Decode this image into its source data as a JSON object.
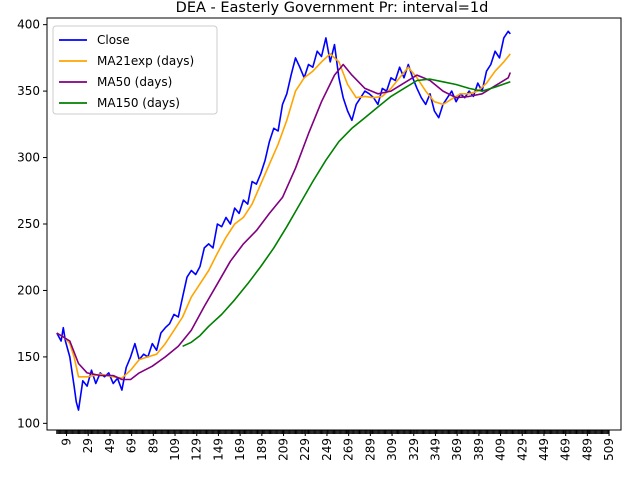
{
  "chart_data": {
    "type": "line",
    "title": "DEA - Easterly Government Pr: interval=1d",
    "xlabel": "",
    "ylabel": "",
    "xlim": [
      -9,
      520
    ],
    "ylim": [
      95,
      405
    ],
    "x_ticks": [
      9,
      29,
      49,
      69,
      89,
      109,
      129,
      149,
      169,
      189,
      209,
      229,
      249,
      269,
      289,
      309,
      329,
      349,
      369,
      389,
      409,
      429,
      449,
      469,
      489,
      509
    ],
    "y_ticks": [
      100,
      150,
      200,
      250,
      300,
      350,
      400
    ],
    "grid": false,
    "legend_position": "top-left",
    "series": [
      {
        "name": "Close",
        "color": "#0000ff",
        "points": [
          [
            0,
            168
          ],
          [
            4,
            162
          ],
          [
            6,
            172
          ],
          [
            8,
            162
          ],
          [
            12,
            150
          ],
          [
            16,
            128
          ],
          [
            18,
            116
          ],
          [
            20,
            110
          ],
          [
            24,
            132
          ],
          [
            28,
            128
          ],
          [
            32,
            140
          ],
          [
            36,
            130
          ],
          [
            40,
            138
          ],
          [
            44,
            135
          ],
          [
            48,
            138
          ],
          [
            52,
            130
          ],
          [
            56,
            134
          ],
          [
            60,
            125
          ],
          [
            64,
            142
          ],
          [
            68,
            150
          ],
          [
            72,
            160
          ],
          [
            76,
            148
          ],
          [
            80,
            152
          ],
          [
            84,
            150
          ],
          [
            88,
            160
          ],
          [
            92,
            155
          ],
          [
            96,
            168
          ],
          [
            100,
            172
          ],
          [
            104,
            175
          ],
          [
            108,
            182
          ],
          [
            112,
            180
          ],
          [
            116,
            195
          ],
          [
            120,
            210
          ],
          [
            124,
            215
          ],
          [
            128,
            212
          ],
          [
            132,
            218
          ],
          [
            136,
            232
          ],
          [
            140,
            235
          ],
          [
            144,
            232
          ],
          [
            148,
            250
          ],
          [
            152,
            248
          ],
          [
            156,
            255
          ],
          [
            160,
            250
          ],
          [
            164,
            262
          ],
          [
            168,
            258
          ],
          [
            172,
            268
          ],
          [
            176,
            265
          ],
          [
            180,
            282
          ],
          [
            184,
            280
          ],
          [
            188,
            288
          ],
          [
            192,
            298
          ],
          [
            196,
            312
          ],
          [
            200,
            322
          ],
          [
            204,
            320
          ],
          [
            208,
            340
          ],
          [
            212,
            348
          ],
          [
            216,
            362
          ],
          [
            220,
            375
          ],
          [
            224,
            368
          ],
          [
            228,
            360
          ],
          [
            232,
            370
          ],
          [
            236,
            368
          ],
          [
            240,
            380
          ],
          [
            244,
            376
          ],
          [
            248,
            390
          ],
          [
            252,
            372
          ],
          [
            256,
            385
          ],
          [
            260,
            360
          ],
          [
            264,
            345
          ],
          [
            268,
            335
          ],
          [
            272,
            328
          ],
          [
            276,
            340
          ],
          [
            280,
            345
          ],
          [
            284,
            350
          ],
          [
            288,
            348
          ],
          [
            292,
            345
          ],
          [
            296,
            340
          ],
          [
            300,
            352
          ],
          [
            304,
            350
          ],
          [
            308,
            360
          ],
          [
            312,
            358
          ],
          [
            316,
            368
          ],
          [
            320,
            360
          ],
          [
            324,
            370
          ],
          [
            328,
            360
          ],
          [
            332,
            352
          ],
          [
            336,
            345
          ],
          [
            340,
            340
          ],
          [
            344,
            348
          ],
          [
            348,
            335
          ],
          [
            352,
            330
          ],
          [
            356,
            340
          ],
          [
            360,
            345
          ],
          [
            364,
            350
          ],
          [
            368,
            342
          ],
          [
            372,
            348
          ],
          [
            376,
            345
          ],
          [
            380,
            350
          ],
          [
            384,
            346
          ],
          [
            388,
            356
          ],
          [
            392,
            350
          ],
          [
            396,
            365
          ],
          [
            400,
            370
          ],
          [
            404,
            380
          ],
          [
            408,
            375
          ],
          [
            412,
            390
          ],
          [
            416,
            395
          ],
          [
            418,
            393
          ]
        ]
      },
      {
        "name": "MA21exp (days)",
        "color": "#ffa500",
        "points": [
          [
            0,
            168
          ],
          [
            8,
            164
          ],
          [
            12,
            160
          ],
          [
            16,
            150
          ],
          [
            20,
            135
          ],
          [
            28,
            135
          ],
          [
            40,
            137
          ],
          [
            52,
            135
          ],
          [
            60,
            134
          ],
          [
            68,
            140
          ],
          [
            76,
            148
          ],
          [
            84,
            150
          ],
          [
            92,
            152
          ],
          [
            100,
            160
          ],
          [
            108,
            170
          ],
          [
            116,
            180
          ],
          [
            124,
            195
          ],
          [
            132,
            205
          ],
          [
            140,
            215
          ],
          [
            148,
            228
          ],
          [
            156,
            240
          ],
          [
            164,
            250
          ],
          [
            172,
            255
          ],
          [
            180,
            265
          ],
          [
            188,
            280
          ],
          [
            196,
            295
          ],
          [
            204,
            310
          ],
          [
            212,
            328
          ],
          [
            220,
            350
          ],
          [
            228,
            360
          ],
          [
            236,
            365
          ],
          [
            244,
            372
          ],
          [
            252,
            378
          ],
          [
            260,
            372
          ],
          [
            268,
            355
          ],
          [
            276,
            345
          ],
          [
            284,
            346
          ],
          [
            292,
            345
          ],
          [
            300,
            346
          ],
          [
            308,
            352
          ],
          [
            316,
            360
          ],
          [
            324,
            368
          ],
          [
            332,
            360
          ],
          [
            340,
            350
          ],
          [
            348,
            342
          ],
          [
            356,
            340
          ],
          [
            364,
            344
          ],
          [
            372,
            348
          ],
          [
            380,
            348
          ],
          [
            388,
            350
          ],
          [
            396,
            356
          ],
          [
            404,
            365
          ],
          [
            412,
            372
          ],
          [
            418,
            378
          ]
        ]
      },
      {
        "name": "MA50 (days)",
        "color": "#800080",
        "points": [
          [
            0,
            168
          ],
          [
            12,
            162
          ],
          [
            20,
            145
          ],
          [
            28,
            138
          ],
          [
            40,
            136
          ],
          [
            52,
            136
          ],
          [
            60,
            133
          ],
          [
            68,
            133
          ],
          [
            76,
            138
          ],
          [
            88,
            143
          ],
          [
            100,
            150
          ],
          [
            112,
            158
          ],
          [
            124,
            170
          ],
          [
            136,
            188
          ],
          [
            148,
            205
          ],
          [
            160,
            222
          ],
          [
            172,
            235
          ],
          [
            184,
            245
          ],
          [
            196,
            258
          ],
          [
            208,
            270
          ],
          [
            220,
            292
          ],
          [
            232,
            318
          ],
          [
            244,
            342
          ],
          [
            256,
            362
          ],
          [
            264,
            370
          ],
          [
            272,
            362
          ],
          [
            284,
            352
          ],
          [
            296,
            348
          ],
          [
            308,
            350
          ],
          [
            320,
            356
          ],
          [
            332,
            362
          ],
          [
            344,
            358
          ],
          [
            356,
            350
          ],
          [
            368,
            345
          ],
          [
            380,
            346
          ],
          [
            392,
            348
          ],
          [
            404,
            354
          ],
          [
            416,
            360
          ],
          [
            418,
            364
          ]
        ]
      },
      {
        "name": "MA150 (days)",
        "color": "#008000",
        "points": [
          [
            116,
            158
          ],
          [
            124,
            161
          ],
          [
            132,
            166
          ],
          [
            140,
            173
          ],
          [
            152,
            182
          ],
          [
            164,
            193
          ],
          [
            176,
            205
          ],
          [
            188,
            218
          ],
          [
            200,
            232
          ],
          [
            212,
            248
          ],
          [
            224,
            265
          ],
          [
            236,
            282
          ],
          [
            248,
            298
          ],
          [
            260,
            312
          ],
          [
            272,
            322
          ],
          [
            284,
            330
          ],
          [
            296,
            338
          ],
          [
            308,
            346
          ],
          [
            320,
            352
          ],
          [
            332,
            358
          ],
          [
            344,
            359
          ],
          [
            356,
            357
          ],
          [
            368,
            355
          ],
          [
            380,
            352
          ],
          [
            392,
            350
          ],
          [
            404,
            353
          ],
          [
            418,
            357
          ]
        ]
      }
    ]
  }
}
